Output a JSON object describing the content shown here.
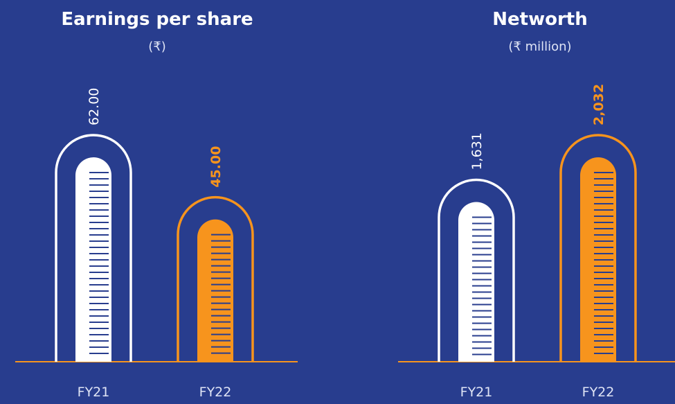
{
  "chart_data": [
    {
      "type": "bar",
      "title": "Earnings per share",
      "subtitle": "(₹)",
      "categories": [
        "FY21",
        "FY22"
      ],
      "values": [
        62.0,
        45.0
      ],
      "value_labels": [
        "62.00",
        "45.00"
      ],
      "colors": [
        "#ffffff",
        "#f7941d"
      ]
    },
    {
      "type": "bar",
      "title": "Networth",
      "subtitle": "(₹ million)",
      "categories": [
        "FY21",
        "FY22"
      ],
      "values": [
        1631,
        2032
      ],
      "value_labels": [
        "1,631",
        "2,032"
      ],
      "colors": [
        "#ffffff",
        "#f7941d"
      ]
    }
  ]
}
